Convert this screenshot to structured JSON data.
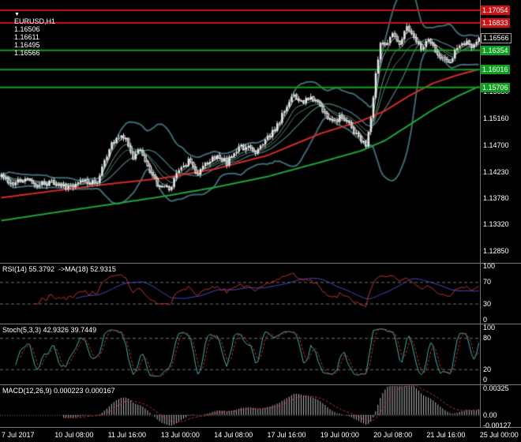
{
  "header": {
    "dropdown_icon": "▼",
    "symbol": "EURUSD,H1",
    "open": "1.16506",
    "high": "1.16611",
    "low": "1.16495",
    "close": "1.16566"
  },
  "panes": {
    "rsi": {
      "label": "RSI(14) 55.3792  ->MA(18) 52.9315"
    },
    "stoch": {
      "label": "Stoch(5,3,3) 42.9326 39.7449"
    },
    "macd": {
      "label": "MACD(12,26,9) 0.000223 0.000167"
    }
  },
  "palette": {
    "background": "#000000",
    "text": "#ffffff",
    "separator": "#7d7d7d",
    "candle": "#d9d9d9",
    "bull_fill": "#e8e8e8",
    "bear_fill": "#000000",
    "bb_band": "#3e6a72",
    "ribbon1": "#9aa49e",
    "ribbon2": "#6e9480",
    "ribbon3": "#52806a",
    "ma_red": "#d42a2a",
    "ma_green": "#1ea43c",
    "level_red": "#cc1212",
    "level_green": "#109e20",
    "rsi_line": "#c03030",
    "rsi_ma": "#4646c8",
    "stoch_main": "#3fb0b0",
    "stoch_signal": "#c03030",
    "macd_hist": "#b8b8b8",
    "macd_signal": "#c03030",
    "dotted_level": "#6f6f6f"
  },
  "chart_data": {
    "type": "candlestick",
    "symbol": "EURUSD",
    "timeframe": "H1",
    "current_ohlc": {
      "open": 1.16506,
      "high": 1.16611,
      "low": 1.16495,
      "close": 1.16566
    },
    "n_bars": 200,
    "noise_amplitude": 0.00055,
    "price_range": {
      "top": 1.17233,
      "bottom": 1.12643
    },
    "close_waypoints": [
      [
        0,
        1.1418
      ],
      [
        5,
        1.14
      ],
      [
        10,
        1.1412
      ],
      [
        15,
        1.1398
      ],
      [
        20,
        1.1405
      ],
      [
        26,
        1.1396
      ],
      [
        32,
        1.1404
      ],
      [
        40,
        1.1408
      ],
      [
        44,
        1.1455
      ],
      [
        48,
        1.1487
      ],
      [
        52,
        1.148
      ],
      [
        55,
        1.145
      ],
      [
        58,
        1.1462
      ],
      [
        62,
        1.142
      ],
      [
        66,
        1.1398
      ],
      [
        70,
        1.139
      ],
      [
        74,
        1.1428
      ],
      [
        78,
        1.1442
      ],
      [
        82,
        1.142
      ],
      [
        86,
        1.1438
      ],
      [
        90,
        1.1452
      ],
      [
        94,
        1.144
      ],
      [
        98,
        1.1462
      ],
      [
        102,
        1.1468
      ],
      [
        106,
        1.1458
      ],
      [
        110,
        1.1475
      ],
      [
        114,
        1.15
      ],
      [
        118,
        1.1528
      ],
      [
        122,
        1.1558
      ],
      [
        126,
        1.1545
      ],
      [
        130,
        1.1552
      ],
      [
        134,
        1.1528
      ],
      [
        138,
        1.151
      ],
      [
        142,
        1.152
      ],
      [
        146,
        1.1498
      ],
      [
        150,
        1.148
      ],
      [
        152,
        1.1468
      ],
      [
        154,
        1.152
      ],
      [
        156,
        1.1595
      ],
      [
        158,
        1.1648
      ],
      [
        160,
        1.164
      ],
      [
        163,
        1.1665
      ],
      [
        166,
        1.1645
      ],
      [
        169,
        1.1678
      ],
      [
        172,
        1.1662
      ],
      [
        175,
        1.164
      ],
      [
        178,
        1.1655
      ],
      [
        182,
        1.1625
      ],
      [
        186,
        1.1612
      ],
      [
        190,
        1.164
      ],
      [
        194,
        1.1652
      ],
      [
        197,
        1.1642
      ],
      [
        199,
        1.16566
      ]
    ],
    "ma_red_waypoints": [
      [
        0,
        1.1378
      ],
      [
        22,
        1.139
      ],
      [
        45,
        1.1402
      ],
      [
        67,
        1.1412
      ],
      [
        89,
        1.1428
      ],
      [
        111,
        1.1452
      ],
      [
        133,
        1.149
      ],
      [
        150,
        1.1512
      ],
      [
        160,
        1.153
      ],
      [
        170,
        1.1556
      ],
      [
        180,
        1.1578
      ],
      [
        190,
        1.1592
      ],
      [
        199,
        1.1602
      ]
    ],
    "ma_green_waypoints": [
      [
        0,
        1.1338
      ],
      [
        22,
        1.1352
      ],
      [
        45,
        1.1366
      ],
      [
        67,
        1.138
      ],
      [
        89,
        1.1396
      ],
      [
        111,
        1.1415
      ],
      [
        133,
        1.144
      ],
      [
        150,
        1.146
      ],
      [
        160,
        1.1478
      ],
      [
        170,
        1.1505
      ],
      [
        180,
        1.1532
      ],
      [
        190,
        1.1555
      ],
      [
        199,
        1.1572
      ]
    ],
    "levels": {
      "resistance": [
        1.17054,
        1.16833
      ],
      "support": [
        1.16354,
        1.16016,
        1.15706
      ],
      "current": 1.16566
    },
    "indicators": {
      "bollinger": {
        "period": 20,
        "deviation": 2
      },
      "rsi": {
        "period": 14,
        "value": 55.3792,
        "ma_period": 18,
        "ma_value": 52.9315,
        "levels": [
          70,
          30
        ],
        "axis": [
          {
            "text": "100",
            "value": 100
          },
          {
            "text": "70",
            "value": 70
          },
          {
            "text": "30",
            "value": 30
          },
          {
            "text": "0",
            "value": 0
          }
        ]
      },
      "stochastic": {
        "params": [
          5,
          3,
          3
        ],
        "main": 42.9326,
        "signal": 39.7449,
        "levels": [
          80,
          20
        ],
        "axis": [
          {
            "text": "100",
            "value": 100
          },
          {
            "text": "80",
            "value": 80
          },
          {
            "text": "20",
            "value": 20
          },
          {
            "text": "0",
            "value": 0
          }
        ]
      },
      "macd": {
        "params": [
          12,
          26,
          9
        ],
        "value": 0.000223,
        "signal": 0.000167,
        "range": {
          "max": 0.0036,
          "min": -0.00145
        },
        "axis": [
          {
            "text": "0.00325",
            "value": 0.00325
          },
          {
            "text": "0.00",
            "value": 0
          },
          {
            "text": "-0.00127",
            "value": -0.00127
          }
        ]
      }
    },
    "price_axis": {
      "boxes": [
        {
          "text": "1.17054",
          "value": 1.17054,
          "kind": "red"
        },
        {
          "text": "1.16833",
          "value": 1.16833,
          "kind": "red"
        },
        {
          "text": "1.16566",
          "value": 1.16566,
          "kind": "current"
        },
        {
          "text": "1.16354",
          "value": 1.16354,
          "kind": "green"
        },
        {
          "text": "1.16016",
          "value": 1.16016,
          "kind": "green"
        },
        {
          "text": "1.15706",
          "value": 1.15706,
          "kind": "green"
        }
      ],
      "ticks": [
        {
          "text": "1.15630",
          "value": 1.1563
        },
        {
          "text": "1.15160",
          "value": 1.1516
        },
        {
          "text": "1.14700",
          "value": 1.147
        },
        {
          "text": "1.14230",
          "value": 1.1423
        },
        {
          "text": "1.13780",
          "value": 1.1378
        },
        {
          "text": "1.13320",
          "value": 1.1332
        },
        {
          "text": "1.12850",
          "value": 1.1285
        }
      ]
    },
    "time_labels": [
      "7 Jul 2017",
      "10 Jul 08:00",
      "11 Jul 16:00",
      "13 Jul 00:00",
      "14 Jul 08:00",
      "17 Jul 16:00",
      "19 Jul 00:00",
      "20 Jul 08:00",
      "21 Jul 16:00",
      "25 Jul 00:00"
    ]
  }
}
